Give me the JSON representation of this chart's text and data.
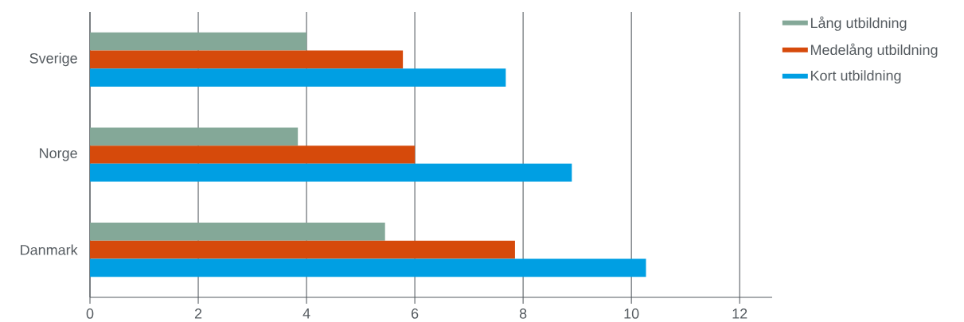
{
  "chart_data": {
    "type": "bar",
    "orientation": "horizontal",
    "categories": [
      "Sverige",
      "Norge",
      "Danmark"
    ],
    "series": [
      {
        "name": "Lång utbildning",
        "color": "#84a898",
        "values": [
          4.0,
          3.84,
          5.45
        ]
      },
      {
        "name": "Medelång utbildning",
        "color": "#d64a0b",
        "values": [
          5.78,
          6.0,
          7.85
        ]
      },
      {
        "name": "Kort utbildning",
        "color": "#009fe3",
        "values": [
          7.68,
          8.9,
          10.27
        ]
      }
    ],
    "xlim": [
      0,
      12.6
    ],
    "xticks": [
      0,
      2,
      4,
      6,
      8,
      10,
      12
    ],
    "grid": "x",
    "legend": "top right"
  }
}
